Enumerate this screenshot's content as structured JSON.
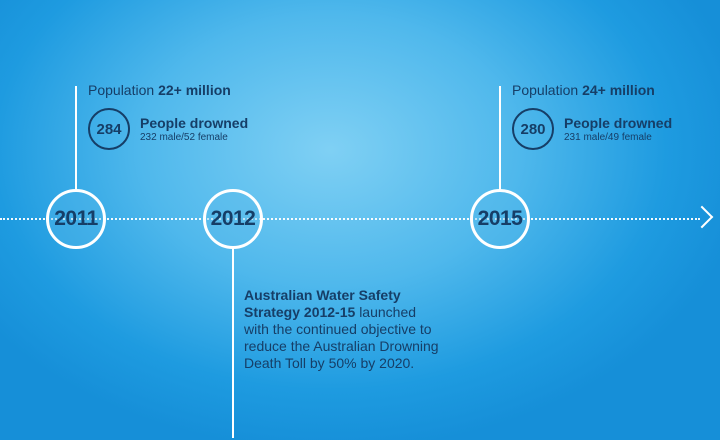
{
  "timeline": {
    "years": [
      {
        "label": "2011"
      },
      {
        "label": "2012"
      },
      {
        "label": "2015"
      }
    ]
  },
  "events": {
    "y2011": {
      "population_prefix": "Population",
      "population_value": "22+ million",
      "drowned_count": "284",
      "drowned_label": "People drowned",
      "drowned_detail": "232 male/52 female"
    },
    "y2015": {
      "population_prefix": "Population",
      "population_value": "24+ million",
      "drowned_count": "280",
      "drowned_label": "People drowned",
      "drowned_detail": "231 male/49 female"
    },
    "y2012": {
      "title": "Australian Water Safety Strategy 2012-15",
      "text": "launched with the continued objective to reduce the Australian Drowning Death Toll by 50% by 2020."
    }
  }
}
